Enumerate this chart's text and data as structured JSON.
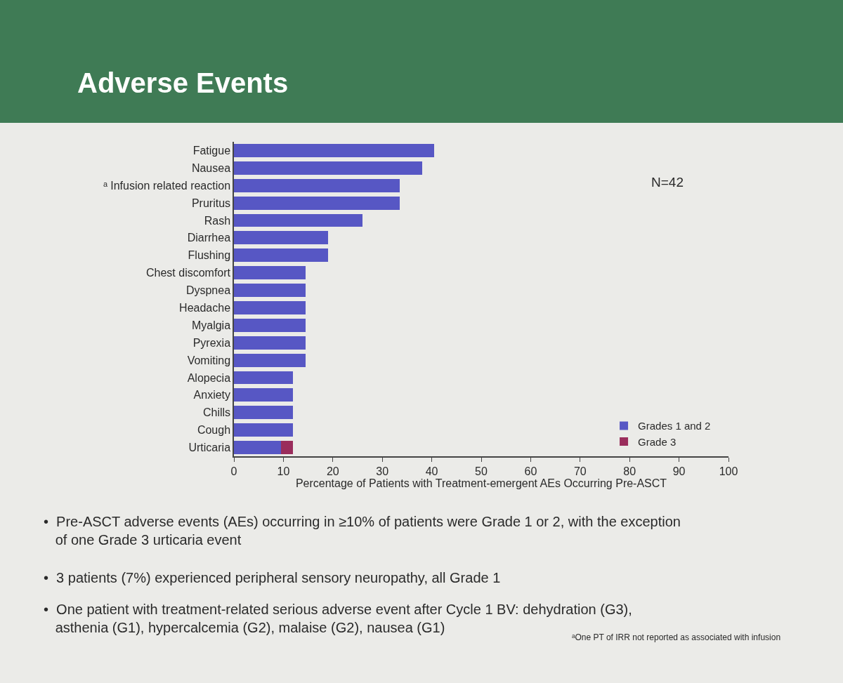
{
  "chart_data": {
    "type": "bar",
    "orientation": "horizontal",
    "stacked": true,
    "title": "Adverse Events",
    "xlabel": "Percentage of Patients with Treatment-emergent AEs Occurring Pre-ASCT",
    "categories": [
      "Fatigue",
      "Nausea",
      "ᵃ Infusion related reaction",
      "Pruritus",
      "Rash",
      "Diarrhea",
      "Flushing",
      "Chest discomfort",
      "Dyspnea",
      "Headache",
      "Myalgia",
      "Pyrexia",
      "Vomiting",
      "Alopecia",
      "Anxiety",
      "Chills",
      "Cough",
      "Urticaria"
    ],
    "series": [
      {
        "name": "Grades 1 and 2",
        "color": "#5757c4",
        "values": [
          40.5,
          38,
          33.5,
          33.5,
          26,
          19,
          19,
          14.5,
          14.5,
          14.5,
          14.5,
          14.5,
          14.5,
          12,
          12,
          12,
          12,
          9.5
        ]
      },
      {
        "name": "Grade 3",
        "color": "#9a2d5c",
        "values": [
          null,
          null,
          null,
          null,
          null,
          null,
          null,
          null,
          null,
          null,
          null,
          null,
          null,
          null,
          null,
          null,
          null,
          2.5
        ]
      }
    ],
    "xlim": [
      0,
      100
    ],
    "xticks": [
      0,
      10,
      20,
      30,
      40,
      50,
      60,
      70,
      80,
      90,
      100
    ],
    "legend": "bottom right",
    "annotations": [
      "N=42",
      "•  Pre-ASCT adverse events (AEs) occurring in ≥10% of patients were Grade 1 or 2, with the exception of one Grade 3 urticaria event",
      "•  3 patients (7%) experienced peripheral sensory neuropathy, all Grade 1",
      "•  One patient with treatment-related serious adverse event after Cycle 1 BV: dehydration (G3), asthenia (G1), hypercalcemia (G2), malaise (G2), nausea (G1)",
      "ᵃOne PT of IRR not reported as associated with infusion"
    ]
  }
}
